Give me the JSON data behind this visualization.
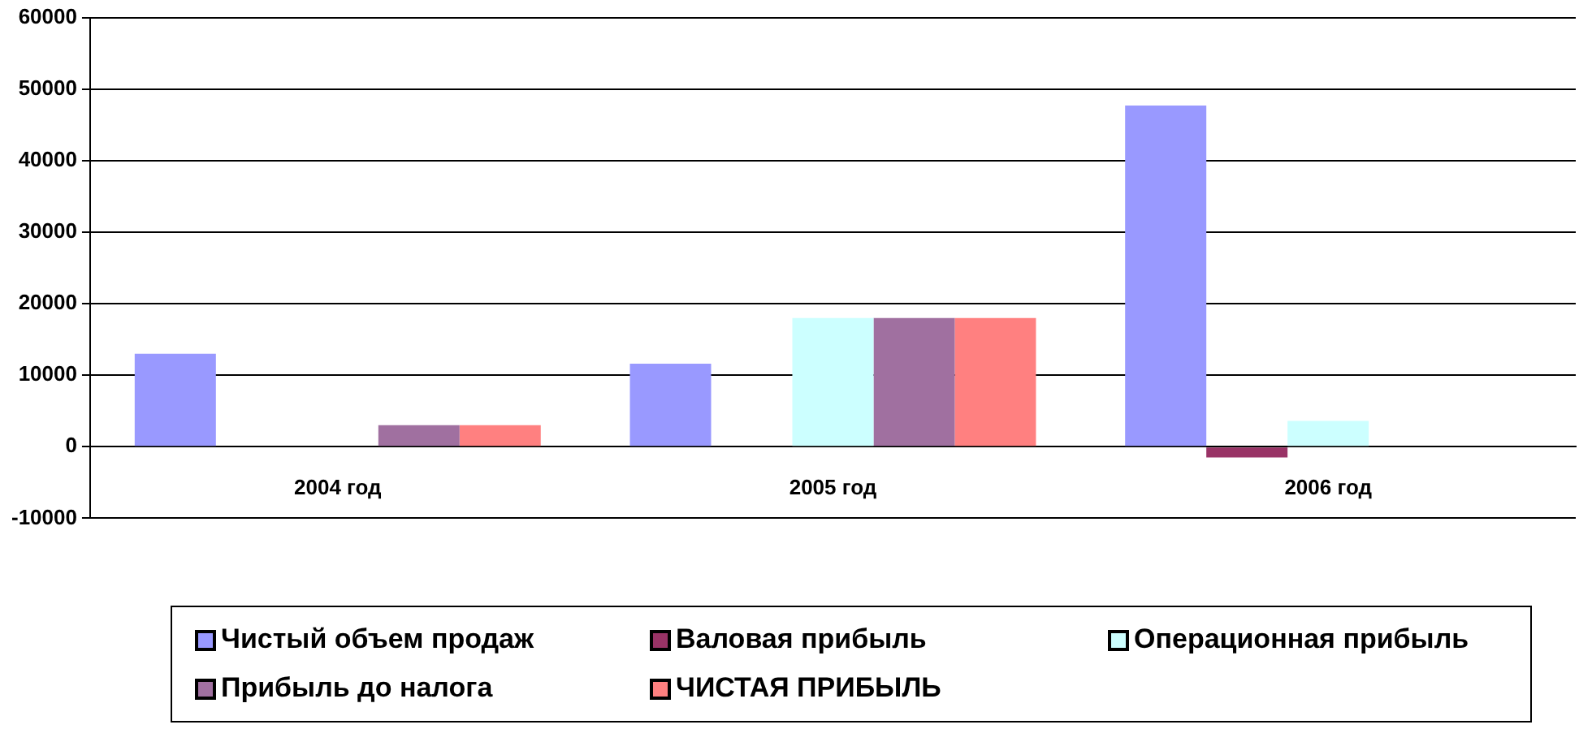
{
  "chart_data": {
    "type": "bar",
    "categories": [
      "2004 год",
      "2005 год",
      "2006 год"
    ],
    "series": [
      {
        "name": "Чистый объем продаж",
        "color": "#9999ff",
        "values": [
          13000,
          11600,
          47700
        ]
      },
      {
        "name": "Валовая прибыль",
        "color": "#993366",
        "values": [
          0,
          0,
          -1500
        ]
      },
      {
        "name": "Операционная прибыль",
        "color": "#ccffff",
        "values": [
          0,
          18000,
          3600
        ]
      },
      {
        "name": "Прибыль до налога",
        "color": "#a070a0",
        "values": [
          3000,
          18000,
          0
        ]
      },
      {
        "name": "ЧИСТАЯ ПРИБЫЛЬ",
        "color": "#ff8080",
        "values": [
          3000,
          18000,
          0
        ]
      }
    ],
    "ylim": [
      -10000,
      60000
    ],
    "yticks": [
      -10000,
      0,
      10000,
      20000,
      30000,
      40000,
      50000,
      60000
    ],
    "grid": "y",
    "legend": "bottom"
  }
}
